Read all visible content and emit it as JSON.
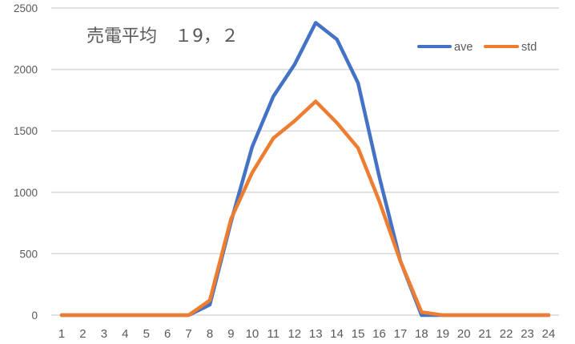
{
  "chart_data": {
    "type": "line",
    "title": "売電平均　１9，２",
    "xlabel": "",
    "ylabel": "",
    "x": [
      1,
      2,
      3,
      4,
      5,
      6,
      7,
      8,
      9,
      10,
      11,
      12,
      13,
      14,
      15,
      16,
      17,
      18,
      19,
      20,
      21,
      22,
      23,
      24
    ],
    "categories": [
      "1",
      "2",
      "3",
      "4",
      "5",
      "6",
      "7",
      "8",
      "9",
      "10",
      "11",
      "12",
      "13",
      "14",
      "15",
      "16",
      "17",
      "18",
      "19",
      "20",
      "21",
      "22",
      "23",
      "24"
    ],
    "series": [
      {
        "name": "ave",
        "color": "#4472C4",
        "values": [
          0,
          0,
          0,
          0,
          0,
          0,
          0,
          85,
          760,
          1370,
          1780,
          2040,
          2380,
          2245,
          1890,
          1130,
          440,
          0,
          0,
          0,
          0,
          0,
          0,
          0
        ]
      },
      {
        "name": "std",
        "color": "#ED7D31",
        "values": [
          0,
          0,
          0,
          0,
          0,
          0,
          0,
          120,
          783,
          1160,
          1440,
          1580,
          1740,
          1565,
          1360,
          930,
          440,
          25,
          0,
          0,
          0,
          0,
          0,
          0
        ]
      }
    ],
    "ylim": [
      0,
      2500
    ],
    "yticks": [
      0,
      500,
      1000,
      1500,
      2000,
      2500
    ],
    "grid": true,
    "legend_position": "top-right"
  },
  "title_text": "売電平均　１9，２",
  "legend": [
    {
      "label": "ave",
      "color": "#4472C4"
    },
    {
      "label": "std",
      "color": "#ED7D31"
    }
  ],
  "gridline_color": "#D9D9D9"
}
